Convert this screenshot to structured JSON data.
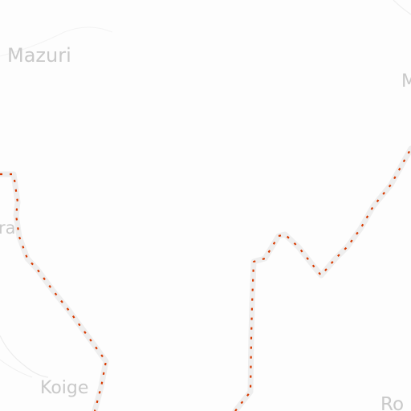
{
  "map": {
    "style": "light-gray",
    "background_color": "#fdfdfd",
    "labels": {
      "mazuri": "Mazuri",
      "koige": "Koige",
      "ra_partial": "ra",
      "m_partial": "M",
      "ro_partial": "Ro"
    },
    "boundary": {
      "style": "dashed",
      "dash_color": "#d83a00",
      "casing_color": "#eeeeee"
    }
  }
}
